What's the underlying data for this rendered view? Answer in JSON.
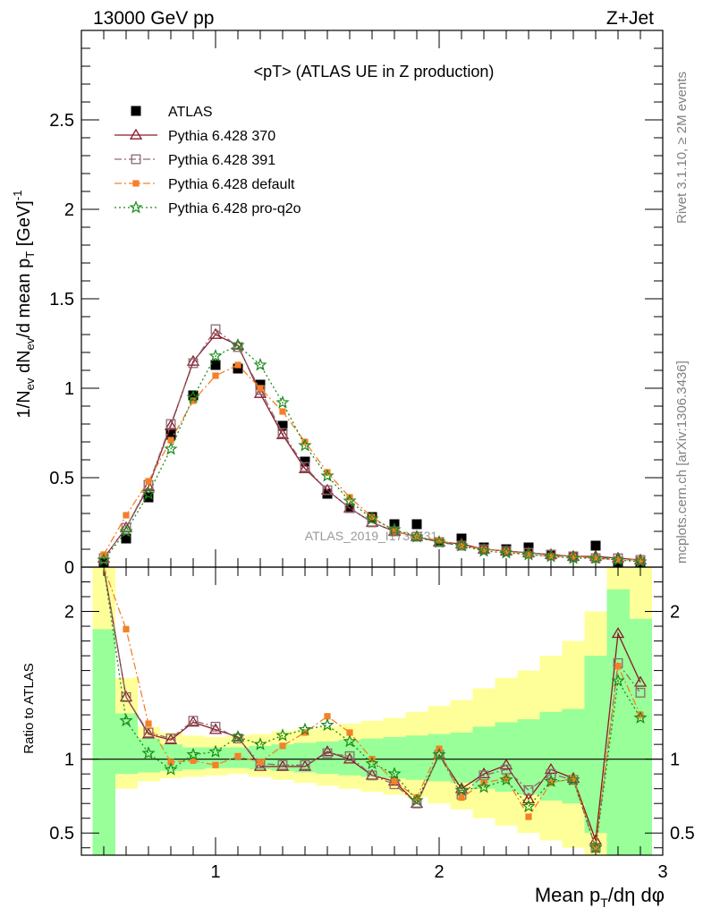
{
  "header": {
    "left": "13000 GeV pp",
    "right": "Z+Jet",
    "plot_title": "<pT> (ATLAS UE in Z production)"
  },
  "side_text": {
    "top": "Rivet 3.1.10, ≥ 2M events",
    "bottom": "mcplots.cern.ch [arXiv:1306.3436]"
  },
  "watermark": "ATLAS_2019_I1736531",
  "colors": {
    "atlas": "#000000",
    "p370": "#8b1a2b",
    "p391": "#8b6a72",
    "default": "#f58028",
    "proq2o": "#1a8a1a",
    "band_inner": "#99ff99",
    "band_outer": "#ffff99"
  },
  "chart_data": [
    {
      "type": "line",
      "panel": "main",
      "ylabel": "1/N_ev dN_ev/d mean p_T [GeV]^-1",
      "xlim": [
        0.4,
        3.0
      ],
      "ylim": [
        0,
        3.0
      ],
      "yticks": [
        "0",
        "0.5",
        "1",
        "1.5",
        "2",
        "2.5"
      ],
      "x": [
        0.5,
        0.6,
        0.7,
        0.8,
        0.9,
        1.0,
        1.1,
        1.2,
        1.3,
        1.4,
        1.5,
        1.6,
        1.7,
        1.8,
        1.9,
        2.0,
        2.1,
        2.2,
        2.3,
        2.4,
        2.5,
        2.6,
        2.7,
        2.8,
        2.9
      ],
      "series": [
        {
          "name": "ATLAS",
          "key": "atlas",
          "values": [
            0.02,
            0.16,
            0.39,
            0.74,
            0.96,
            1.13,
            1.11,
            1.02,
            0.79,
            0.59,
            0.41,
            0.33,
            0.28,
            0.24,
            0.24,
            0.14,
            0.16,
            0.11,
            0.1,
            0.11,
            0.07,
            0.06,
            0.12,
            0.03,
            0.03
          ]
        },
        {
          "name": "Pythia 6.428 370",
          "key": "p370",
          "values": [
            0.05,
            0.22,
            0.45,
            0.79,
            1.15,
            1.3,
            1.24,
            0.97,
            0.74,
            0.55,
            0.43,
            0.33,
            0.25,
            0.2,
            0.17,
            0.14,
            0.13,
            0.1,
            0.09,
            0.08,
            0.07,
            0.06,
            0.06,
            0.05,
            0.04
          ]
        },
        {
          "name": "Pythia 6.428 391",
          "key": "p391",
          "values": [
            0.05,
            0.22,
            0.46,
            0.8,
            1.14,
            1.33,
            1.23,
            0.99,
            0.75,
            0.56,
            0.43,
            0.33,
            0.25,
            0.2,
            0.17,
            0.14,
            0.12,
            0.1,
            0.09,
            0.08,
            0.07,
            0.06,
            0.05,
            0.05,
            0.04
          ]
        },
        {
          "name": "Pythia 6.428 default",
          "key": "default",
          "values": [
            0.07,
            0.29,
            0.48,
            0.71,
            0.93,
            1.07,
            1.13,
            1.0,
            0.87,
            0.7,
            0.53,
            0.39,
            0.28,
            0.2,
            0.17,
            0.15,
            0.12,
            0.1,
            0.09,
            0.07,
            0.06,
            0.06,
            0.05,
            0.04,
            0.04
          ]
        },
        {
          "name": "Pythia 6.428 pro-q2o",
          "key": "proq2o",
          "values": [
            0.04,
            0.2,
            0.41,
            0.66,
            0.95,
            1.18,
            1.24,
            1.13,
            0.92,
            0.68,
            0.51,
            0.37,
            0.27,
            0.21,
            0.17,
            0.14,
            0.12,
            0.09,
            0.08,
            0.07,
            0.06,
            0.05,
            0.05,
            0.04,
            0.03
          ]
        }
      ]
    },
    {
      "type": "line",
      "panel": "ratio",
      "ylabel": "Ratio to ATLAS",
      "xlabel": "Mean p_T/dη dφ",
      "xlim": [
        0.4,
        3.0
      ],
      "ylim": [
        0.35,
        2.3
      ],
      "xticks": [
        "1",
        "2",
        "3"
      ],
      "yticks": [
        "0.5",
        "1",
        "2"
      ],
      "x": [
        0.5,
        0.6,
        0.7,
        0.8,
        0.9,
        1.0,
        1.1,
        1.2,
        1.3,
        1.4,
        1.5,
        1.6,
        1.7,
        1.8,
        1.9,
        2.0,
        2.1,
        2.2,
        2.3,
        2.4,
        2.5,
        2.6,
        2.7,
        2.8,
        2.9
      ],
      "band_inner": [
        [
          0.35,
          1.88
        ],
        [
          0.9,
          1.31
        ],
        [
          0.91,
          1.14
        ],
        [
          0.92,
          1.1
        ],
        [
          0.93,
          1.08
        ],
        [
          0.94,
          1.08
        ],
        [
          0.94,
          1.08
        ],
        [
          0.93,
          1.09
        ],
        [
          0.92,
          1.1
        ],
        [
          0.91,
          1.11
        ],
        [
          0.9,
          1.12
        ],
        [
          0.89,
          1.13
        ],
        [
          0.88,
          1.14
        ],
        [
          0.87,
          1.15
        ],
        [
          0.86,
          1.16
        ],
        [
          0.85,
          1.17
        ],
        [
          0.84,
          1.18
        ],
        [
          0.8,
          1.22
        ],
        [
          0.78,
          1.25
        ],
        [
          0.76,
          1.27
        ],
        [
          0.72,
          1.32
        ],
        [
          0.7,
          1.34
        ],
        [
          0.5,
          1.7
        ],
        [
          0.35,
          2.15
        ],
        [
          0.35,
          1.95
        ]
      ],
      "band_outer": [
        [
          0.35,
          2.3
        ],
        [
          0.8,
          1.55
        ],
        [
          0.85,
          1.22
        ],
        [
          0.87,
          1.18
        ],
        [
          0.88,
          1.16
        ],
        [
          0.89,
          1.15
        ],
        [
          0.9,
          1.16
        ],
        [
          0.88,
          1.17
        ],
        [
          0.86,
          1.19
        ],
        [
          0.84,
          1.2
        ],
        [
          0.82,
          1.22
        ],
        [
          0.8,
          1.24
        ],
        [
          0.78,
          1.26
        ],
        [
          0.76,
          1.28
        ],
        [
          0.74,
          1.32
        ],
        [
          0.7,
          1.36
        ],
        [
          0.66,
          1.4
        ],
        [
          0.6,
          1.48
        ],
        [
          0.55,
          1.55
        ],
        [
          0.5,
          1.6
        ],
        [
          0.45,
          1.7
        ],
        [
          0.4,
          1.8
        ],
        [
          0.35,
          2.0
        ],
        [
          0.35,
          2.3
        ],
        [
          0.35,
          2.3
        ]
      ],
      "series": [
        {
          "name": "Pythia 6.428 370",
          "key": "p370",
          "values": [
            2.6,
            1.42,
            1.17,
            1.13,
            1.25,
            1.2,
            1.15,
            0.95,
            0.95,
            0.95,
            1.05,
            1.0,
            0.89,
            0.85,
            0.7,
            1.03,
            0.8,
            0.9,
            0.96,
            0.73,
            0.93,
            0.87,
            0.45,
            1.85,
            1.52
          ]
        },
        {
          "name": "Pythia 6.428 391",
          "key": "p391",
          "values": [
            2.6,
            1.42,
            1.18,
            1.14,
            1.26,
            1.22,
            1.14,
            0.97,
            0.96,
            0.96,
            1.04,
            1.02,
            0.89,
            0.83,
            0.7,
            1.03,
            0.76,
            0.89,
            0.93,
            0.79,
            0.9,
            0.86,
            0.4,
            1.65,
            1.45
          ]
        },
        {
          "name": "Pythia 6.428 default",
          "key": "default",
          "values": [
            2.6,
            1.88,
            1.24,
            0.98,
            0.99,
            0.96,
            1.02,
            0.98,
            1.09,
            1.18,
            1.29,
            1.18,
            1.0,
            0.85,
            0.74,
            1.07,
            0.74,
            0.84,
            0.87,
            0.61,
            0.84,
            0.87,
            0.4,
            1.63,
            1.3
          ]
        },
        {
          "name": "Pythia 6.428 pro-q2o",
          "key": "proq2o",
          "values": [
            2.6,
            1.26,
            1.04,
            0.93,
            1.03,
            1.05,
            1.15,
            1.1,
            1.16,
            1.2,
            1.23,
            1.12,
            0.97,
            0.9,
            0.72,
            1.03,
            0.79,
            0.81,
            0.86,
            0.68,
            0.85,
            0.86,
            0.4,
            1.53,
            1.28
          ]
        }
      ]
    }
  ]
}
